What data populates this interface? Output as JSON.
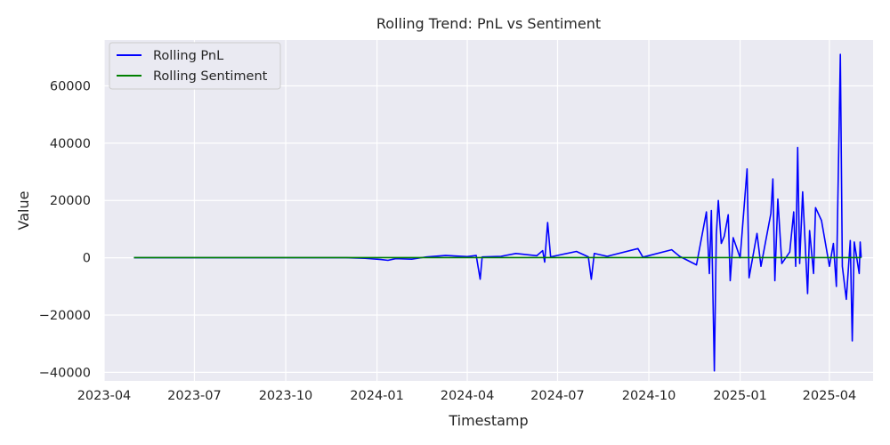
{
  "chart_data": {
    "type": "line",
    "title": "Rolling Trend: PnL vs Sentiment",
    "xlabel": "Timestamp",
    "ylabel": "Value",
    "x_ticks": [
      "2023-04",
      "2023-07",
      "2023-10",
      "2024-01",
      "2024-04",
      "2024-07",
      "2024-10",
      "2025-01",
      "2025-04"
    ],
    "y_ticks": [
      -40000,
      -20000,
      0,
      20000,
      40000,
      60000
    ],
    "y_tick_labels": [
      "−40000",
      "−20000",
      "0",
      "20000",
      "40000",
      "60000"
    ],
    "xlim": [
      "2023-04-01",
      "2025-05-15"
    ],
    "ylim": [
      -43000,
      76000
    ],
    "grid": true,
    "background": "#eaeaf2",
    "legend_position": "upper-left",
    "series": [
      {
        "name": "Rolling PnL",
        "color": "#0000ff",
        "points": [
          [
            "2023-05-01",
            0
          ],
          [
            "2023-12-01",
            0
          ],
          [
            "2023-12-20",
            -200
          ],
          [
            "2024-01-05",
            -600
          ],
          [
            "2024-01-12",
            -900
          ],
          [
            "2024-01-20",
            -300
          ],
          [
            "2024-02-05",
            -500
          ],
          [
            "2024-02-20",
            300
          ],
          [
            "2024-03-10",
            800
          ],
          [
            "2024-04-01",
            400
          ],
          [
            "2024-04-10",
            800
          ],
          [
            "2024-04-14",
            -7500
          ],
          [
            "2024-04-16",
            300
          ],
          [
            "2024-05-05",
            500
          ],
          [
            "2024-05-20",
            1500
          ],
          [
            "2024-06-10",
            700
          ],
          [
            "2024-06-16",
            2500
          ],
          [
            "2024-06-18",
            -1500
          ],
          [
            "2024-06-21",
            12300
          ],
          [
            "2024-06-24",
            300
          ],
          [
            "2024-07-20",
            2200
          ],
          [
            "2024-08-01",
            300
          ],
          [
            "2024-08-04",
            -7500
          ],
          [
            "2024-08-07",
            1500
          ],
          [
            "2024-08-20",
            500
          ],
          [
            "2024-09-20",
            3200
          ],
          [
            "2024-09-25",
            200
          ],
          [
            "2024-10-24",
            2800
          ],
          [
            "2024-11-01",
            500
          ],
          [
            "2024-11-18",
            -2500
          ],
          [
            "2024-11-28",
            16000
          ],
          [
            "2024-12-01",
            -5500
          ],
          [
            "2024-12-03",
            16500
          ],
          [
            "2024-12-06",
            -39500
          ],
          [
            "2024-12-08",
            8000
          ],
          [
            "2024-12-10",
            20000
          ],
          [
            "2024-12-13",
            5000
          ],
          [
            "2024-12-16",
            7500
          ],
          [
            "2024-12-20",
            15000
          ],
          [
            "2024-12-22",
            -8000
          ],
          [
            "2024-12-25",
            7000
          ],
          [
            "2025-01-01",
            0
          ],
          [
            "2025-01-08",
            31000
          ],
          [
            "2025-01-10",
            -7000
          ],
          [
            "2025-01-18",
            8500
          ],
          [
            "2025-01-22",
            -3000
          ],
          [
            "2025-02-01",
            15500
          ],
          [
            "2025-02-03",
            27500
          ],
          [
            "2025-02-05",
            -8000
          ],
          [
            "2025-02-08",
            20500
          ],
          [
            "2025-02-12",
            -2000
          ],
          [
            "2025-02-20",
            2000
          ],
          [
            "2025-02-24",
            16000
          ],
          [
            "2025-02-26",
            -3000
          ],
          [
            "2025-02-28",
            38500
          ],
          [
            "2025-03-02",
            -2000
          ],
          [
            "2025-03-05",
            23000
          ],
          [
            "2025-03-10",
            -12500
          ],
          [
            "2025-03-12",
            9500
          ],
          [
            "2025-03-16",
            -5500
          ],
          [
            "2025-03-18",
            17500
          ],
          [
            "2025-03-24",
            13000
          ],
          [
            "2025-04-01",
            -3000
          ],
          [
            "2025-04-05",
            5000
          ],
          [
            "2025-04-08",
            -10000
          ],
          [
            "2025-04-12",
            71000
          ],
          [
            "2025-04-14",
            -3000
          ],
          [
            "2025-04-18",
            -14500
          ],
          [
            "2025-04-22",
            6000
          ],
          [
            "2025-04-24",
            -29000
          ],
          [
            "2025-04-26",
            5500
          ],
          [
            "2025-05-01",
            -5500
          ],
          [
            "2025-05-02",
            5500
          ],
          [
            "2025-05-03",
            0
          ]
        ]
      },
      {
        "name": "Rolling Sentiment",
        "color": "#008000",
        "points": [
          [
            "2023-05-01",
            50
          ],
          [
            "2025-05-03",
            50
          ]
        ]
      }
    ]
  }
}
